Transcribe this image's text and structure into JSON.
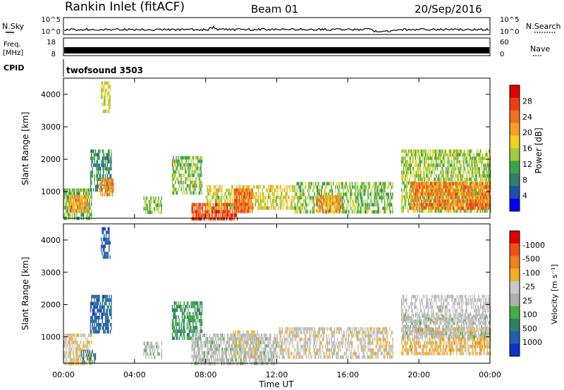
{
  "header": {
    "station": "Rankin Inlet (fitACF)",
    "beam": "Beam 01",
    "date": "20/Sep/2016"
  },
  "strip": {
    "nsky_label": "N.Sky",
    "nsky_ticks": [
      "10^5",
      "10^0"
    ],
    "nsearch_label": "N.Search",
    "nsearch_ticks": [
      "10^5",
      "10^0"
    ],
    "freq_label_1": "Freq.",
    "freq_label_2": "[MHz]",
    "freq_ticks": [
      "18",
      "8"
    ],
    "nave_label": "Nave",
    "nave_ticks": [
      "60",
      "0"
    ],
    "cpid_label": "CPID",
    "cpid_value": "twofsound 3503"
  },
  "chart_data": [
    {
      "type": "heatmap",
      "panel": "power",
      "ylabel": "Slant Range [km]",
      "xlabel": "",
      "x_ticks": [
        "00:00",
        "04:00",
        "08:00",
        "12:00",
        "16:00",
        "20:00",
        "00:00"
      ],
      "y_ticks": [
        1000,
        2000,
        3000,
        4000
      ],
      "ylim": [
        180,
        4500
      ],
      "colorbar": {
        "label": "Power [dB]",
        "ticks": [
          "4",
          "8",
          "12",
          "16",
          "20",
          "24",
          "28"
        ],
        "colors": [
          "#0000ff",
          "#1f4fb0",
          "#2f7f6a",
          "#3fa34a",
          "#9fcf3f",
          "#f0d020",
          "#f5a020",
          "#f07020",
          "#e84010",
          "#e00000"
        ]
      },
      "patches": [
        {
          "t0": 0.0,
          "t1": 1.6,
          "r0": 180,
          "r1": 1100,
          "v": 12,
          "d": 0.7
        },
        {
          "t0": 0.3,
          "t1": 1.4,
          "r0": 450,
          "r1": 900,
          "v": 22,
          "d": 0.8
        },
        {
          "t0": 1.5,
          "t1": 2.7,
          "r0": 1100,
          "r1": 2300,
          "v": 9,
          "d": 0.7
        },
        {
          "t0": 2.0,
          "t1": 2.8,
          "r0": 900,
          "r1": 1400,
          "v": 23,
          "d": 0.8
        },
        {
          "t0": 2.1,
          "t1": 2.6,
          "r0": 3500,
          "r1": 4400,
          "v": 17,
          "d": 0.5
        },
        {
          "t0": 4.5,
          "t1": 5.5,
          "r0": 350,
          "r1": 850,
          "v": 13,
          "d": 0.6
        },
        {
          "t0": 6.1,
          "t1": 7.8,
          "r0": 1000,
          "r1": 2100,
          "v": 13,
          "d": 0.6
        },
        {
          "t0": 7.2,
          "t1": 9.8,
          "r0": 180,
          "r1": 650,
          "v": 27,
          "d": 0.85
        },
        {
          "t0": 8.0,
          "t1": 13.0,
          "r0": 450,
          "r1": 1200,
          "v": 17,
          "d": 0.6
        },
        {
          "t0": 9.6,
          "t1": 10.6,
          "r0": 350,
          "r1": 1100,
          "v": 25,
          "d": 0.8
        },
        {
          "t0": 13.0,
          "t1": 18.5,
          "r0": 350,
          "r1": 1300,
          "v": 13,
          "d": 0.6
        },
        {
          "t0": 14.2,
          "t1": 15.6,
          "r0": 450,
          "r1": 900,
          "v": 22,
          "d": 0.7
        },
        {
          "t0": 19.0,
          "t1": 24.0,
          "r0": 400,
          "r1": 2300,
          "v": 14,
          "d": 0.7
        },
        {
          "t0": 19.5,
          "t1": 24.0,
          "r0": 500,
          "r1": 1300,
          "v": 24,
          "d": 0.8
        }
      ]
    },
    {
      "type": "heatmap",
      "panel": "velocity",
      "ylabel": "Slant Range [km]",
      "xlabel": "Time UT",
      "x_ticks": [
        "00:00",
        "04:00",
        "08:00",
        "12:00",
        "16:00",
        "20:00",
        "00:00"
      ],
      "y_ticks": [
        1000,
        2000,
        3000,
        4000
      ],
      "ylim": [
        180,
        4500
      ],
      "colorbar": {
        "label": "Velocity [m s⁻¹]",
        "ticks": [
          "1000",
          "500",
          "100",
          "25",
          "-25",
          "-100",
          "-500",
          "-1000"
        ],
        "colors": [
          "#1030d0",
          "#2060b0",
          "#308060",
          "#40b040",
          "#b0b0b0",
          "#c8c8c8",
          "#f0b020",
          "#f08020",
          "#f05010",
          "#e00000"
        ]
      },
      "patches": [
        {
          "t0": 0.0,
          "t1": 1.6,
          "r0": 180,
          "r1": 1100,
          "v": -200,
          "d": 0.7
        },
        {
          "t0": 1.0,
          "t1": 1.8,
          "r0": 180,
          "r1": 600,
          "v": 700,
          "d": 0.6
        },
        {
          "t0": 1.5,
          "t1": 2.7,
          "r0": 1100,
          "r1": 2300,
          "v": 800,
          "d": 0.7
        },
        {
          "t0": 2.1,
          "t1": 2.6,
          "r0": 3500,
          "r1": 4400,
          "v": 900,
          "d": 0.6
        },
        {
          "t0": 4.5,
          "t1": 5.5,
          "r0": 350,
          "r1": 850,
          "v": 60,
          "d": 0.6
        },
        {
          "t0": 6.1,
          "t1": 7.8,
          "r0": 1000,
          "r1": 2100,
          "v": 500,
          "d": 0.6
        },
        {
          "t0": 7.2,
          "t1": 12.0,
          "r0": 180,
          "r1": 1100,
          "v": 50,
          "d": 0.7
        },
        {
          "t0": 9.5,
          "t1": 11.0,
          "r0": 350,
          "r1": 1200,
          "v": -150,
          "d": 0.6
        },
        {
          "t0": 12.0,
          "t1": 18.5,
          "r0": 350,
          "r1": 1300,
          "v": -120,
          "d": 0.6
        },
        {
          "t0": 19.0,
          "t1": 24.0,
          "r0": 500,
          "r1": 1300,
          "v": -300,
          "d": 0.7
        },
        {
          "t0": 19.0,
          "t1": 24.0,
          "r0": 1000,
          "r1": 1700,
          "v": 60,
          "d": 0.6
        },
        {
          "t0": 19.0,
          "t1": 24.0,
          "r0": 1500,
          "r1": 2300,
          "v": 0,
          "d": 0.5
        }
      ]
    }
  ]
}
